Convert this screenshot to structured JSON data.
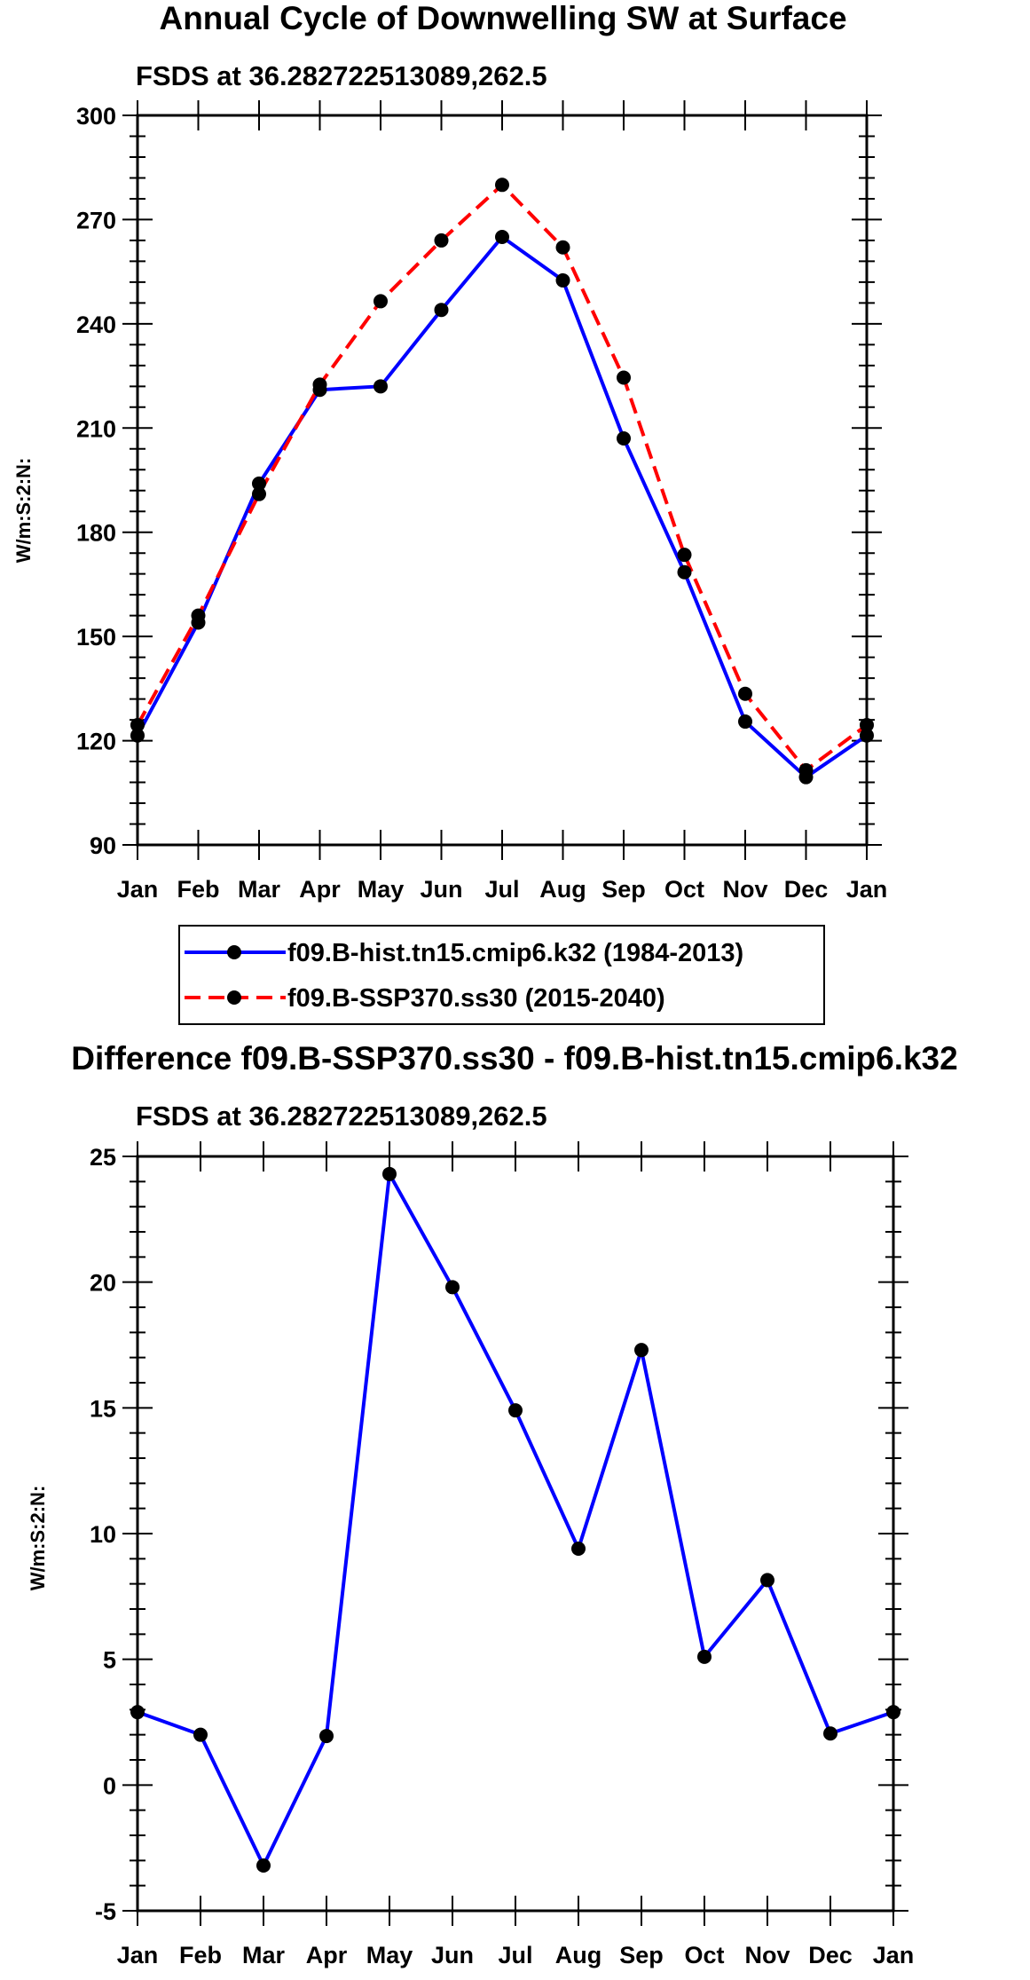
{
  "chart_data": [
    {
      "type": "line",
      "title": "Annual Cycle of Downwelling SW at Surface",
      "subtitle": "FSDS at 36.282722513089,262.5",
      "ylabel": "W/m:S:2:N:",
      "xlabel": "",
      "categories": [
        "Jan",
        "Feb",
        "Mar",
        "Apr",
        "May",
        "Jun",
        "Jul",
        "Aug",
        "Sep",
        "Oct",
        "Nov",
        "Dec",
        "Jan"
      ],
      "ylim": [
        90,
        300
      ],
      "yticks": [
        90,
        120,
        150,
        180,
        210,
        240,
        270,
        300
      ],
      "yticks_labels": [
        "90",
        "120",
        "150",
        "180",
        "210",
        "240",
        "270",
        "300"
      ],
      "legend_position": "below",
      "series": [
        {
          "name": "f09.B-hist.tn15.cmip6.k32 (1984-2013)",
          "color": "#0000ff",
          "dash": "solid",
          "values": [
            121.5,
            154,
            194,
            221,
            222,
            244,
            265,
            252.5,
            207,
            168.5,
            125.5,
            109.5,
            121.5
          ]
        },
        {
          "name": "f09.B-SSP370.ss30 (2015-2040)",
          "color": "#ff0000",
          "dash": "dashed",
          "values": [
            124.5,
            156,
            191,
            222.5,
            246.5,
            264,
            280,
            262,
            224.5,
            173.5,
            133.5,
            111.5,
            124.5
          ]
        }
      ]
    },
    {
      "type": "line",
      "title": "Difference f09.B-SSP370.ss30 - f09.B-hist.tn15.cmip6.k32",
      "subtitle": "FSDS at 36.282722513089,262.5",
      "ylabel": "W/m:S:2:N:",
      "xlabel": "",
      "categories": [
        "Jan",
        "Feb",
        "Mar",
        "Apr",
        "May",
        "Jun",
        "Jul",
        "Aug",
        "Sep",
        "Oct",
        "Nov",
        "Dec",
        "Jan"
      ],
      "ylim": [
        -5,
        25
      ],
      "yticks": [
        -5,
        0,
        5,
        10,
        15,
        20,
        25
      ],
      "yticks_labels": [
        "-5",
        "0",
        "5",
        "10",
        "15",
        "20",
        "25"
      ],
      "series": [
        {
          "name": "Difference",
          "color": "#0000ff",
          "dash": "solid",
          "values": [
            2.9,
            2.0,
            -3.2,
            1.95,
            24.3,
            19.8,
            14.9,
            9.4,
            17.3,
            5.1,
            8.15,
            2.05,
            2.9
          ]
        }
      ]
    }
  ]
}
